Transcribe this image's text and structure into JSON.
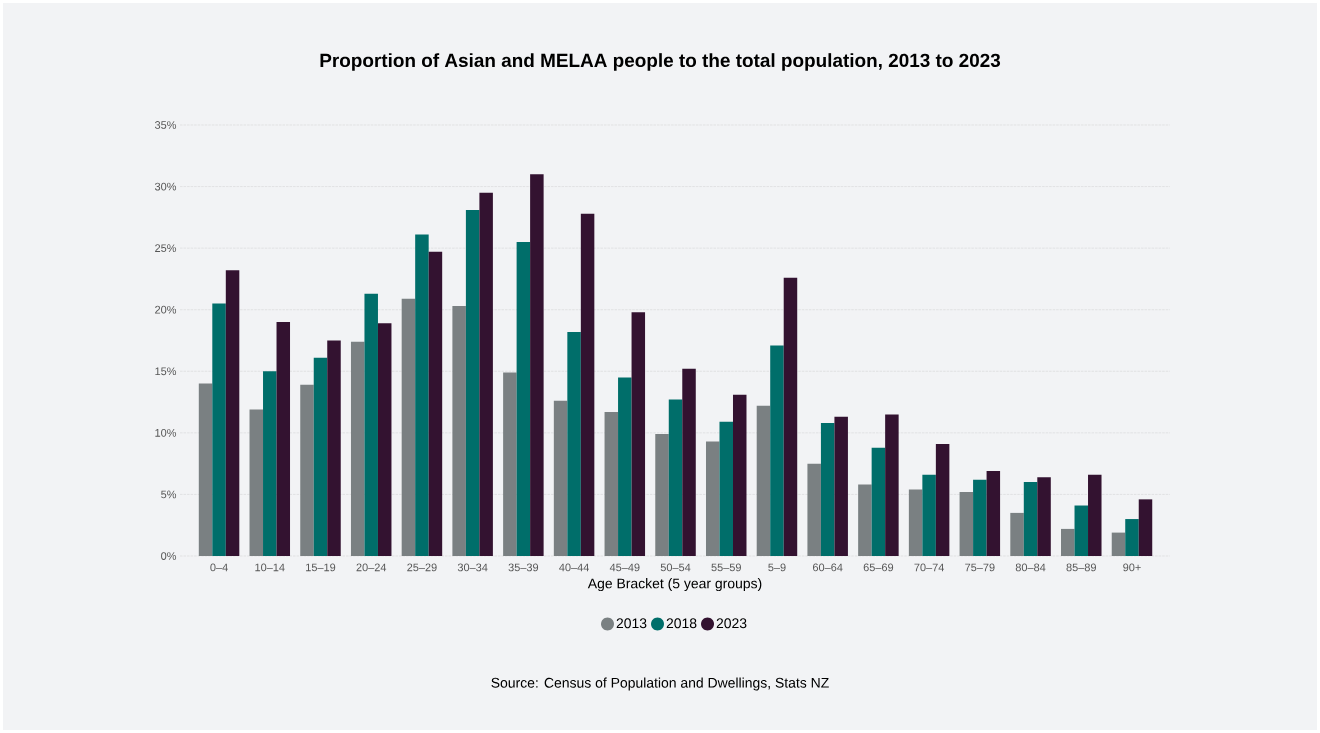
{
  "chart_data": {
    "type": "bar",
    "title": "Proportion of Asian and MELAA people to the total population, 2013 to 2023",
    "xlabel": "Age Bracket (5 year groups)",
    "categories": [
      "0–4",
      "10–14",
      "15–19",
      "20–24",
      "25–29",
      "30–34",
      "35–39",
      "40–44",
      "45–49",
      "50–54",
      "55–59",
      "5–9",
      "60–64",
      "65–69",
      "70–74",
      "75–79",
      "80–84",
      "85–89",
      "90+"
    ],
    "series": [
      {
        "name": "2013",
        "color": "#7a8082",
        "values": [
          14.0,
          11.9,
          13.9,
          17.4,
          20.9,
          20.3,
          14.9,
          12.6,
          11.7,
          9.9,
          9.3,
          12.2,
          7.5,
          5.8,
          5.4,
          5.2,
          3.5,
          2.2,
          1.9
        ]
      },
      {
        "name": "2018",
        "color": "#006e6a",
        "values": [
          20.5,
          15.0,
          16.1,
          21.3,
          26.1,
          28.1,
          25.5,
          18.2,
          14.5,
          12.7,
          10.9,
          17.1,
          10.8,
          8.8,
          6.6,
          6.2,
          6.0,
          4.1,
          3.0
        ]
      },
      {
        "name": "2023",
        "color": "#331230",
        "values": [
          23.2,
          19.0,
          17.5,
          18.9,
          24.7,
          29.5,
          31.0,
          27.8,
          19.8,
          15.2,
          13.1,
          22.6,
          11.3,
          11.5,
          9.1,
          6.9,
          6.4,
          6.6,
          4.6
        ]
      }
    ],
    "ylim": [
      0,
      35
    ],
    "yticks": [
      {
        "value": 0,
        "label": "0%"
      },
      {
        "value": 5,
        "label": "5%"
      },
      {
        "value": 10,
        "label": "10%"
      },
      {
        "value": 15,
        "label": "15%"
      },
      {
        "value": 20,
        "label": "20%"
      },
      {
        "value": 25,
        "label": "25%"
      },
      {
        "value": 30,
        "label": "30%"
      },
      {
        "value": 35,
        "label": "35%"
      }
    ],
    "grid": "y",
    "legend": "bottom",
    "annotations": [
      "Source: Census of Population and Dwellings, Stats NZ"
    ]
  }
}
